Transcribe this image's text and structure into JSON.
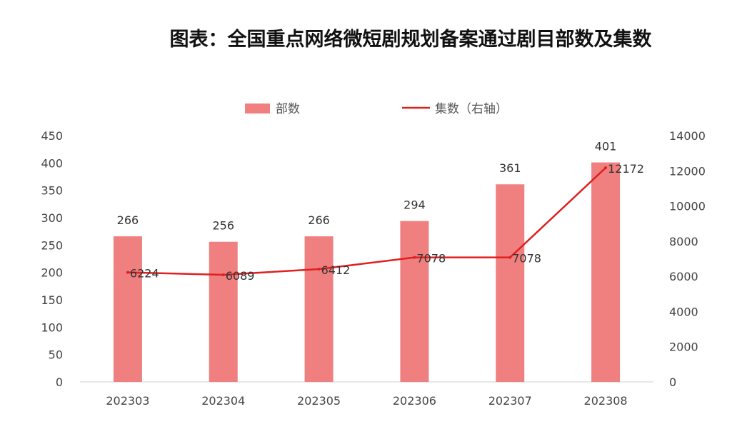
{
  "chart_data": {
    "type": "bar",
    "title": "图表：全国重点网络微短剧规划备案通过剧目部数及集数",
    "categories": [
      "202303",
      "202304",
      "202305",
      "202306",
      "202307",
      "202308"
    ],
    "series": [
      {
        "name": "部数",
        "type": "bar",
        "axis": "left",
        "values": [
          266,
          256,
          266,
          294,
          361,
          401
        ],
        "color": "#f08080"
      },
      {
        "name": "集数（右轴）",
        "type": "line",
        "axis": "right",
        "values": [
          6224,
          6089,
          6412,
          7078,
          7078,
          12172
        ],
        "color": "#e02020"
      }
    ],
    "y_left": {
      "min": 0,
      "max": 450,
      "step": 50
    },
    "y_right": {
      "min": 0,
      "max": 14000,
      "step": 2000
    },
    "grid": false,
    "legend_position": "top"
  }
}
